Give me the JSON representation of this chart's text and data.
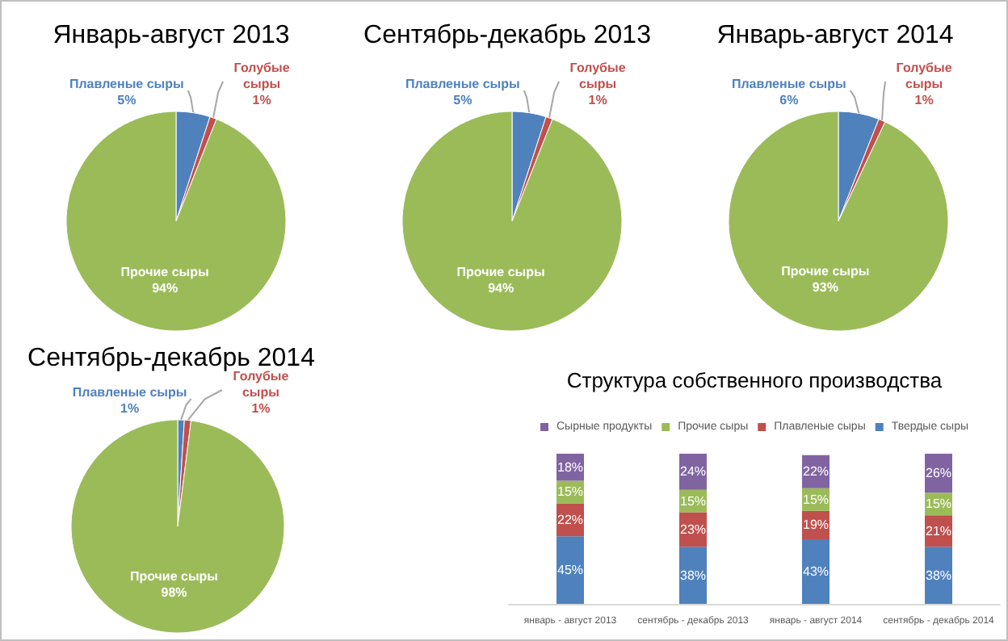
{
  "chart_data": [
    {
      "type": "pie",
      "title": "Январь-август 2013",
      "categories": [
        "Плавленые сыры",
        "Голубые сыры",
        "Прочие сыры"
      ],
      "values": [
        5,
        1,
        94
      ],
      "value_labels": [
        "5%",
        "1%",
        "94%"
      ],
      "colors": [
        "#4f81bd",
        "#c0504d",
        "#9bbb59"
      ],
      "legend": false
    },
    {
      "type": "pie",
      "title": "Сентябрь-декабрь 2013",
      "categories": [
        "Плавленые сыры",
        "Голубые сыры",
        "Прочие сыры"
      ],
      "values": [
        5,
        1,
        94
      ],
      "value_labels": [
        "5%",
        "1%",
        "94%"
      ],
      "colors": [
        "#4f81bd",
        "#c0504d",
        "#9bbb59"
      ],
      "legend": false
    },
    {
      "type": "pie",
      "title": "Январь-август 2014",
      "categories": [
        "Плавленые сыры",
        "Голубые сыры",
        "Прочие сыры"
      ],
      "values": [
        6,
        1,
        93
      ],
      "value_labels": [
        "6%",
        "1%",
        "93%"
      ],
      "colors": [
        "#4f81bd",
        "#c0504d",
        "#9bbb59"
      ],
      "legend": false
    },
    {
      "type": "pie",
      "title": "Сентябрь-декабрь 2014",
      "categories": [
        "Плавленые сыры",
        "Голубые сыры",
        "Прочие сыры"
      ],
      "values": [
        1,
        1,
        98
      ],
      "value_labels": [
        "1%",
        "1%",
        "98%"
      ],
      "colors": [
        "#4f81bd",
        "#c0504d",
        "#9bbb59"
      ],
      "legend": false
    },
    {
      "type": "bar",
      "title": "Структура собственного производства",
      "stacked": true,
      "legend": "top",
      "tick_labels": "x",
      "categories": [
        "январь - август 2013",
        "сентябрь - декабрь 2013",
        "январь - август 2014",
        "сентябрь - декабрь 2014"
      ],
      "series": [
        {
          "name": "Твердые сыры",
          "color": "#4f81bd",
          "values": [
            45,
            38,
            43,
            38
          ],
          "value_labels": [
            "45%",
            "38%",
            "43%",
            "38%"
          ]
        },
        {
          "name": "Плавленые сыры",
          "color": "#c0504d",
          "values": [
            22,
            23,
            19,
            21
          ],
          "value_labels": [
            "22%",
            "23%",
            "19%",
            "21%"
          ]
        },
        {
          "name": "Прочие сыры",
          "color": "#9bbb59",
          "values": [
            15,
            15,
            15,
            15
          ],
          "value_labels": [
            "15%",
            "15%",
            "15%",
            "15%"
          ]
        },
        {
          "name": "Сырные продукты",
          "color": "#8064a2",
          "values": [
            18,
            24,
            22,
            26
          ],
          "value_labels": [
            "18%",
            "24%",
            "22%",
            "26%"
          ]
        }
      ]
    }
  ]
}
